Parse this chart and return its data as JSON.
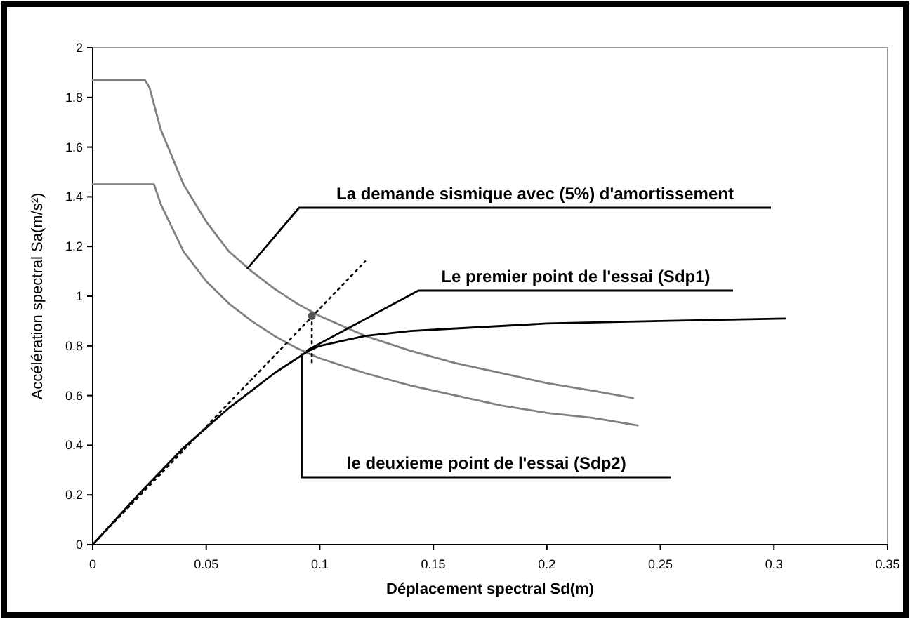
{
  "chart_data": {
    "type": "line",
    "xlabel": "Déplacement spectral Sd(m)",
    "ylabel": "Accélération spectral Sa(m/s²)",
    "xlim": [
      0,
      0.35
    ],
    "ylim": [
      0,
      2
    ],
    "xticks": [
      0,
      0.05,
      0.1,
      0.15,
      0.2,
      0.25,
      0.3,
      0.35
    ],
    "yticks": [
      0,
      0.2,
      0.4,
      0.6,
      0.8,
      1,
      1.2,
      1.4,
      1.6,
      1.8,
      2
    ],
    "grid": false,
    "series": [
      {
        "color": "#808080",
        "x": [
          0,
          0.023,
          0.025,
          0.03,
          0.04,
          0.05,
          0.06,
          0.07,
          0.08,
          0.09,
          0.1,
          0.12,
          0.14,
          0.16,
          0.18,
          0.2,
          0.22,
          0.238
        ],
        "values": [
          1.87,
          1.87,
          1.84,
          1.67,
          1.45,
          1.3,
          1.18,
          1.1,
          1.03,
          0.97,
          0.92,
          0.84,
          0.78,
          0.73,
          0.69,
          0.65,
          0.62,
          0.59
        ]
      },
      {
        "color": "#808080",
        "x": [
          0,
          0.027,
          0.03,
          0.04,
          0.05,
          0.06,
          0.07,
          0.08,
          0.09,
          0.1,
          0.12,
          0.14,
          0.16,
          0.18,
          0.2,
          0.22,
          0.24
        ],
        "values": [
          1.45,
          1.45,
          1.37,
          1.18,
          1.06,
          0.97,
          0.9,
          0.84,
          0.79,
          0.75,
          0.69,
          0.64,
          0.6,
          0.56,
          0.53,
          0.51,
          0.48
        ]
      },
      {
        "color": "#000000",
        "x": [
          0,
          0.02,
          0.04,
          0.05,
          0.06,
          0.07,
          0.08,
          0.09,
          0.095,
          0.1,
          0.11,
          0.12,
          0.14,
          0.16,
          0.2,
          0.25,
          0.305
        ],
        "values": [
          0,
          0.2,
          0.39,
          0.47,
          0.55,
          0.62,
          0.69,
          0.75,
          0.78,
          0.8,
          0.82,
          0.84,
          0.86,
          0.87,
          0.89,
          0.9,
          0.91
        ]
      },
      {
        "color": "#000000",
        "line_style": "dotted",
        "x": [
          0,
          0.12
        ],
        "values": [
          0,
          1.14
        ]
      },
      {
        "color": "#000000",
        "line_style": "dotted",
        "x": [
          0.0965,
          0.0965
        ],
        "values": [
          0.92,
          0.72
        ]
      },
      {
        "type": "scatter",
        "marker": "circle",
        "color": "#555555",
        "x": [
          0.0965
        ],
        "values": [
          0.92
        ]
      }
    ],
    "annotations": [
      {
        "text": "La demande sismique avec (5%) d'amortissement",
        "x": 0.068,
        "y": 1.11
      },
      {
        "text": "Le premier point de l'essai (Sdp1)",
        "x": 0.094,
        "y": 0.78
      },
      {
        "text": "le deuxieme point de l'essai (Sdp2)",
        "x": 0.092,
        "y": 0.77
      }
    ]
  }
}
